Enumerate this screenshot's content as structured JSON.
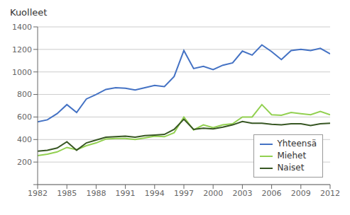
{
  "chart_data": {
    "type": "line",
    "ylabel": "Kuolleet",
    "x": [
      1982,
      1983,
      1984,
      1985,
      1986,
      1987,
      1988,
      1989,
      1990,
      1991,
      1992,
      1993,
      1994,
      1995,
      1996,
      1997,
      1998,
      1999,
      2000,
      2001,
      2002,
      2003,
      2004,
      2005,
      2006,
      2007,
      2008,
      2009,
      2010,
      2011,
      2012
    ],
    "series": [
      {
        "name": "Yhteensä",
        "color": "#4472C4",
        "values": [
          557,
          575,
          630,
          710,
          640,
          760,
          800,
          845,
          860,
          855,
          840,
          860,
          880,
          870,
          960,
          1190,
          1030,
          1050,
          1020,
          1060,
          1080,
          1185,
          1150,
          1240,
          1180,
          1110,
          1190,
          1200,
          1190,
          1210,
          1160
        ]
      },
      {
        "name": "Miehet",
        "color": "#92D050",
        "values": [
          258,
          270,
          290,
          330,
          310,
          345,
          370,
          405,
          410,
          410,
          400,
          415,
          430,
          425,
          460,
          600,
          485,
          530,
          505,
          530,
          540,
          600,
          600,
          710,
          620,
          615,
          640,
          630,
          620,
          650,
          620
        ]
      },
      {
        "name": "Naiset",
        "color": "#375623",
        "values": [
          297,
          305,
          325,
          380,
          305,
          370,
          395,
          420,
          425,
          430,
          420,
          435,
          440,
          445,
          490,
          580,
          490,
          500,
          495,
          510,
          530,
          560,
          545,
          545,
          535,
          530,
          540,
          540,
          525,
          540,
          545
        ]
      }
    ],
    "xlim": [
      1982,
      2012
    ],
    "xticks": [
      1982,
      1985,
      1988,
      1991,
      1994,
      1997,
      2000,
      2003,
      2006,
      2009,
      2012
    ],
    "ylim": [
      0,
      1400
    ],
    "yticks": [
      {
        "value": 0,
        "label": ""
      },
      200,
      400,
      600,
      800,
      1000,
      1200,
      1400
    ],
    "grid": "y",
    "legend": "lower right"
  }
}
